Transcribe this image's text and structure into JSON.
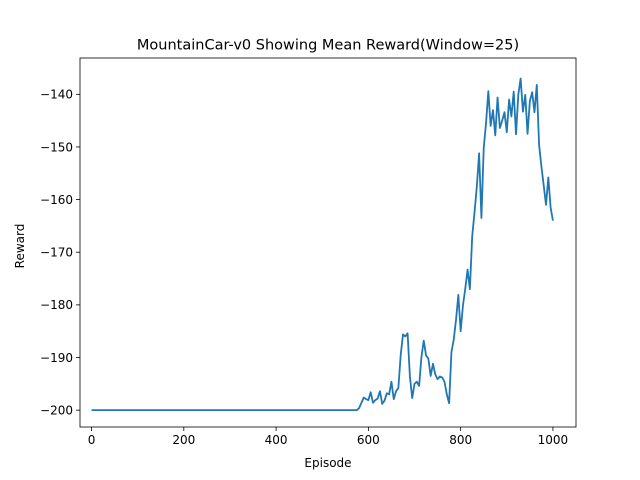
{
  "chart_data": {
    "type": "line",
    "title": "MountainCar-v0 Showing Mean Reward(Window=25)",
    "xlabel": "Episode",
    "ylabel": "Reward",
    "xlim": [
      -25,
      1050
    ],
    "ylim": [
      -203.2,
      -133.1
    ],
    "xticks": [
      0,
      200,
      400,
      600,
      800,
      1000
    ],
    "xtick_labels": [
      "0",
      "200",
      "400",
      "600",
      "800",
      "1000"
    ],
    "yticks": [
      -200,
      -190,
      -180,
      -170,
      -160,
      -150,
      -140
    ],
    "ytick_labels": [
      "−200",
      "−190",
      "−180",
      "−170",
      "−160",
      "−150",
      "−140"
    ],
    "grid": false,
    "series": [
      {
        "color": "#1f77b4",
        "x": [
          0,
          100,
          200,
          300,
          400,
          500,
          575,
          580,
          585,
          590,
          595,
          600,
          605,
          610,
          615,
          620,
          625,
          630,
          635,
          640,
          645,
          650,
          655,
          660,
          665,
          670,
          675,
          680,
          685,
          690,
          695,
          700,
          705,
          710,
          715,
          720,
          725,
          730,
          735,
          740,
          745,
          750,
          755,
          760,
          765,
          770,
          775,
          780,
          785,
          790,
          795,
          800,
          805,
          810,
          815,
          820,
          825,
          830,
          835,
          840,
          845,
          850,
          855,
          860,
          865,
          870,
          875,
          880,
          885,
          890,
          895,
          900,
          905,
          910,
          915,
          920,
          925,
          930,
          935,
          940,
          945,
          950,
          955,
          960,
          965,
          970,
          975,
          980,
          985,
          990,
          995,
          1000
        ],
        "y": [
          -200,
          -200,
          -200,
          -200,
          -200,
          -200,
          -200,
          -199.6,
          -198.6,
          -197.6,
          -197.9,
          -198.1,
          -196.6,
          -198.6,
          -198.1,
          -197.8,
          -196.4,
          -198.8,
          -198.2,
          -196.8,
          -197.0,
          -194.6,
          -197.9,
          -196.4,
          -195.8,
          -189.6,
          -185.6,
          -186.0,
          -185.4,
          -193.6,
          -197.7,
          -195.0,
          -194.6,
          -195.4,
          -189.9,
          -186.8,
          -189.6,
          -190.2,
          -193.5,
          -191.2,
          -193.2,
          -194.1,
          -193.6,
          -193.8,
          -194.6,
          -197.0,
          -198.7,
          -189.0,
          -186.6,
          -182.8,
          -178.1,
          -185.0,
          -180.1,
          -176.9,
          -173.3,
          -177.0,
          -167.0,
          -162.5,
          -157.6,
          -151.2,
          -163.5,
          -150.2,
          -145.5,
          -139.4,
          -146.0,
          -143.0,
          -147.8,
          -140.6,
          -146.4,
          -145.0,
          -143.4,
          -147.2,
          -141.0,
          -144.2,
          -139.5,
          -147.6,
          -140.0,
          -137.0,
          -143.3,
          -140.1,
          -147.5,
          -141.3,
          -139.6,
          -143.4,
          -138.2,
          -149.6,
          -153.7,
          -157.3,
          -161.0,
          -155.8,
          -161.5,
          -164.0
        ]
      }
    ]
  }
}
